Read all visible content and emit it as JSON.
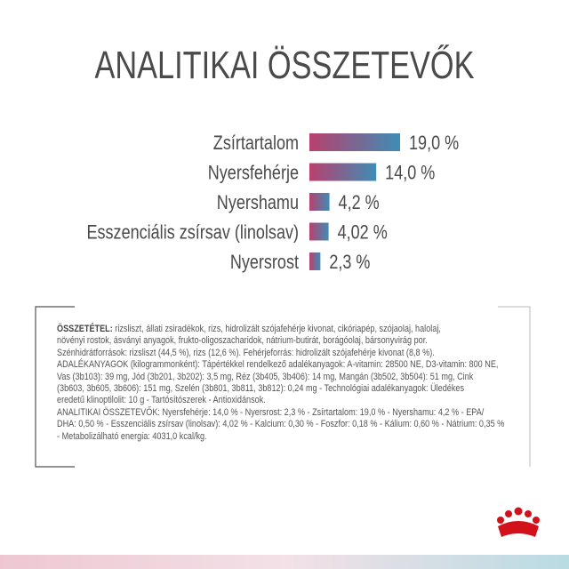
{
  "chart_data": {
    "type": "bar",
    "orientation": "horizontal",
    "title": "ANALITIKAI ÖSSZETEVŐK",
    "categories": [
      "Zsírtartalom",
      "Nyersfehérje",
      "Nyershamu",
      "Esszenciális zsírsav (linolsav)",
      "Nyersrost"
    ],
    "values": [
      19.0,
      14.0,
      4.2,
      4.02,
      2.3
    ],
    "value_labels": [
      "19,0 %",
      "14,0 %",
      "4,2 %",
      "4,02 %",
      "2,3 %"
    ],
    "colors": [
      "#b8406e",
      "#3e8db5"
    ]
  },
  "composition": {
    "label": "ÖSSZETÉTEL:",
    "lines": [
      " rizsliszt, állati zsiradékok, rizs, hidrolizált szójafehérje kivonat, cikóriapép, szójaolaj, halolaj,",
      "növényi rostok, ásványi anyagok, frukto-oligoszacharidok, nátrium-butirát, borágóolaj, bársonyvirág por.",
      "Szénhidrátforrások: rizsliszt (44,5 %), rizs (12,6 %). Fehérjeforrás: hidrolizált szójafehérje kivonat (8,8 %).",
      "ADALÉKANYAGOK (kilogrammonként): Tápértékkel rendelkező adalékanyagok: A-vitamin: 28500 NE, D3-vitamin: 800 NE,",
      "Vas (3b103): 39 mg, Jód (3b201, 3b202): 3,5 mg, Réz (3b405, 3b406): 14 mg, Mangán (3b502, 3b504): 51 mg, Cink",
      "(3b603, 3b605, 3b606): 151 mg, Szelén (3b801, 3b811, 3b812): 0,24 mg - Technológiai adalékanyagok: Üledékes",
      "eredetű klinoptilolit: 10 g - Tartósítószerek - Antioxidánsok.",
      "ANALITIKAI ÖSSZETEVŐK: Nyersfehérje: 14,0 % - Nyersrost: 2,3 % - Zsírtartalom: 19,0 % - Nyershamu: 4,2 % - EPA/",
      "DHA: 0,50 % - Esszenciális zsírsav (linolsav): 4,02 % - Kalcium: 0,30 % - Foszfor: 0,18 % - Kálium: 0,60 % - Nátrium: 0,35 %",
      "- Metabolizálható energia: 4031,0 kcal/kg."
    ]
  }
}
